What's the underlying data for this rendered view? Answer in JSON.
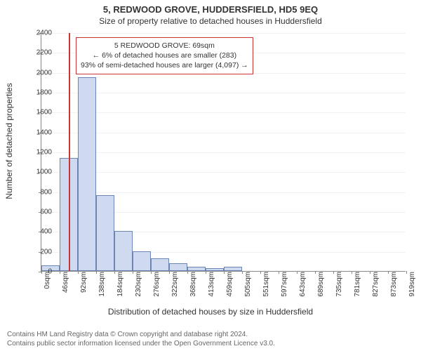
{
  "heading": {
    "title": "5, REDWOOD GROVE, HUDDERSFIELD, HD5 9EQ",
    "subtitle": "Size of property relative to detached houses in Huddersfield"
  },
  "chart": {
    "type": "histogram",
    "ylabel": "Number of detached properties",
    "xlabel": "Distribution of detached houses by size in Huddersfield",
    "ylim": [
      0,
      2400
    ],
    "yticks": [
      0,
      200,
      400,
      600,
      800,
      1000,
      1200,
      1400,
      1600,
      1800,
      2000,
      2200,
      2400
    ],
    "xticks": [
      "0sqm",
      "46sqm",
      "92sqm",
      "138sqm",
      "184sqm",
      "230sqm",
      "276sqm",
      "322sqm",
      "368sqm",
      "413sqm",
      "459sqm",
      "505sqm",
      "551sqm",
      "597sqm",
      "643sqm",
      "689sqm",
      "735sqm",
      "781sqm",
      "827sqm",
      "873sqm",
      "919sqm"
    ],
    "values": [
      55,
      1140,
      1950,
      760,
      400,
      195,
      130,
      80,
      45,
      30,
      40,
      0,
      0,
      0,
      0,
      0,
      0,
      0,
      0,
      0
    ],
    "bar_fill": "#cfdaf0",
    "bar_stroke": "#6b86b3",
    "grid_color": "#eef2f7",
    "background_color": "#ffffff",
    "marker": {
      "position_sqm": 69,
      "color": "#cc3333"
    },
    "annotation": {
      "line1": "5 REDWOOD GROVE: 69sqm",
      "line2": "← 6% of detached houses are smaller (283)",
      "line3": "93% of semi-detached houses are larger (4,097) →",
      "border_color": "#cc3333",
      "background_color": "#ffffff",
      "fontsize": 10.5
    }
  },
  "footnote": {
    "line1": "Contains HM Land Registry data © Crown copyright and database right 2024.",
    "line2": "Contains public sector information licensed under the Open Government Licence v3.0."
  }
}
